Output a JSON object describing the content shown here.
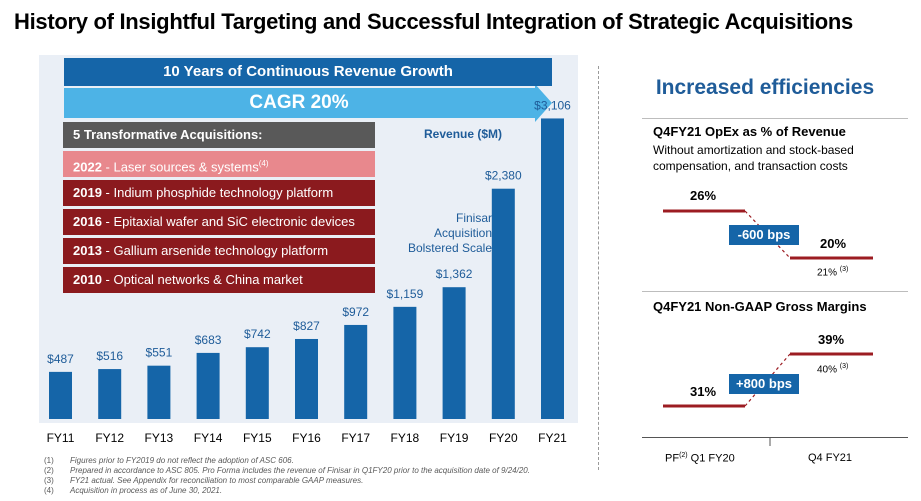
{
  "title": "History of Insightful Targeting and Successful Integration of Strategic Acquisitions",
  "banner": "10 Years of Continuous Revenue Growth",
  "cagr": "CAGR 20%",
  "acquisitions": {
    "header": "5 Transformative Acquisitions:",
    "items": [
      {
        "year": "2022",
        "text": " - Laser sources & systems",
        "note": "(4)"
      },
      {
        "year": "2019",
        "text": " - Indium phosphide technology platform",
        "note": ""
      },
      {
        "year": "2016",
        "text": " - Epitaxial wafer and SiC electronic devices",
        "note": ""
      },
      {
        "year": "2013",
        "text": " - Gallium arsenide technology platform",
        "note": ""
      },
      {
        "year": "2010",
        "text": " - Optical networks & China market",
        "note": ""
      }
    ]
  },
  "revenue_label": "Revenue ($M)",
  "finisar_note": [
    "Finisar",
    "Acquisition",
    "Bolstered Scale"
  ],
  "chart_data": {
    "type": "bar",
    "title": "Revenue ($M)",
    "categories": [
      "FY11",
      "FY12",
      "FY13",
      "FY14",
      "FY15",
      "FY16",
      "FY17",
      "FY18",
      "FY19",
      "FY20",
      "FY21"
    ],
    "values": [
      487,
      516,
      551,
      683,
      742,
      827,
      972,
      1159,
      1362,
      2380,
      3106
    ],
    "labels": [
      "$487",
      "$516",
      "$551",
      "$683",
      "$742",
      "$827",
      "$972",
      "$1,159",
      "$1,362",
      "$2,380",
      "$3,106"
    ],
    "ylim": [
      0,
      3400
    ],
    "color": "#1565a8"
  },
  "efficiencies": {
    "title": "Increased efficiencies",
    "opex": {
      "title": "Q4FY21 OpEx as % of Revenue",
      "subtitle": "Without amortization and stock-based compensation, and transaction costs",
      "before": "26%",
      "after": "20%",
      "after_actual": "21%",
      "after_actual_note": "(3)",
      "change": "-600 bps"
    },
    "margin": {
      "title": "Q4FY21 Non-GAAP Gross Margins",
      "before": "31%",
      "after": "39%",
      "after_actual": "40%",
      "after_actual_note": "(3)",
      "change": "+800 bps"
    },
    "x_labels": {
      "left_prefix": "PF",
      "left_note": "(2)",
      "left_suffix": " Q1 FY20",
      "right": "Q4 FY21"
    }
  },
  "footnotes": [
    {
      "n": "(1)",
      "text": "Figures prior to FY2019 do not reflect the adoption of ASC 606."
    },
    {
      "n": "(2)",
      "text": "Prepared in accordance to ASC 805.  Pro Forma includes the revenue of Finisar in Q1FY20 prior to the acquisition date of 9/24/20."
    },
    {
      "n": "(3)",
      "text": "FY21 actual. See Appendix for reconciliation to most comparable GAAP measures."
    },
    {
      "n": "(4)",
      "text": "Acquisition in process as of June 30, 2021."
    }
  ],
  "colors": {
    "blue": "#1565a8",
    "arrow": "#4db3e6",
    "dark_red": "#8b1a1e",
    "pink": "#e8888d",
    "gray": "#595959"
  }
}
